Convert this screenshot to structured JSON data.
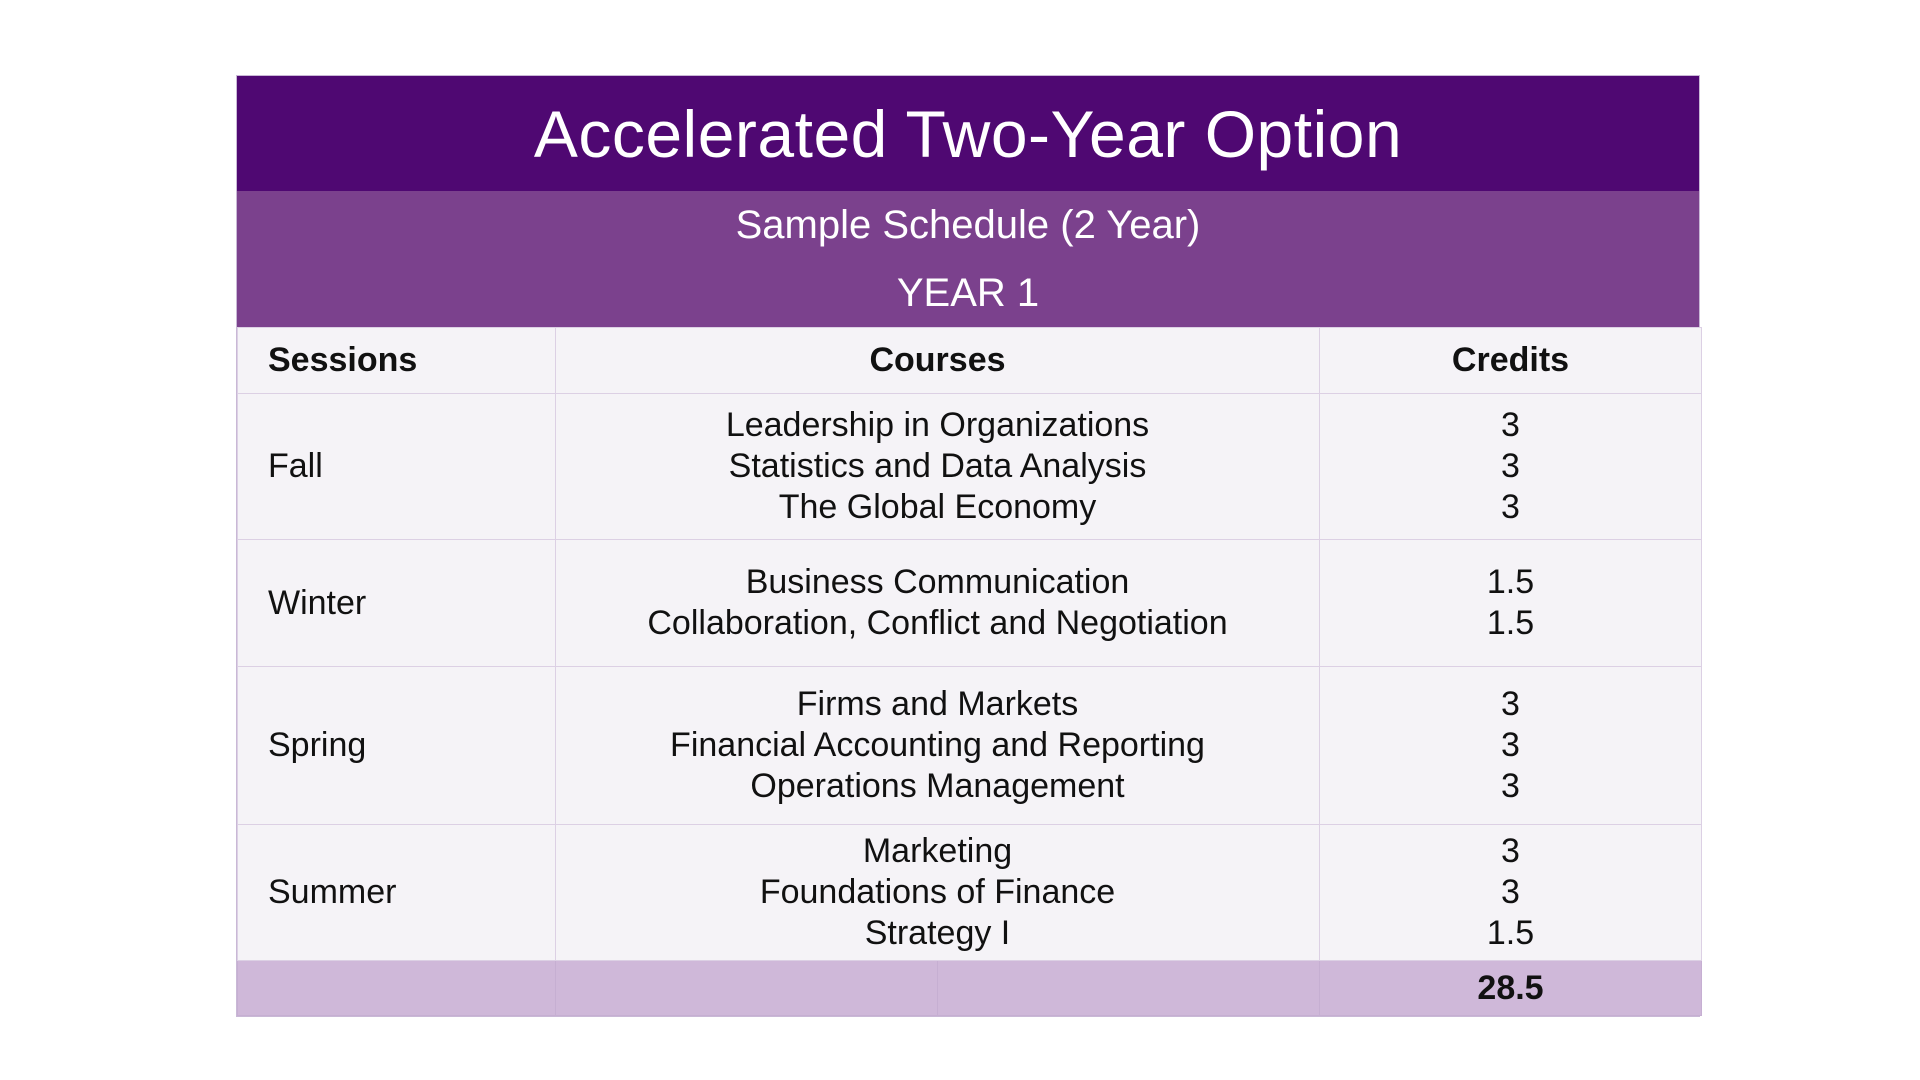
{
  "title": "Accelerated Two-Year Option",
  "subtitle": "Sample Schedule (2 Year)",
  "year_label": "YEAR 1",
  "headers": {
    "sessions": "Sessions",
    "courses": "Courses",
    "credits": "Credits"
  },
  "rows": [
    {
      "session": "Fall",
      "courses": [
        "Leadership in Organizations",
        "Statistics and Data Analysis",
        "The Global Economy"
      ],
      "credits": [
        "3",
        "3",
        "3"
      ]
    },
    {
      "session": "Winter",
      "courses": [
        "Business Communication",
        "Collaboration, Conflict and Negotiation"
      ],
      "credits": [
        "1.5",
        "1.5"
      ]
    },
    {
      "session": "Spring",
      "courses": [
        "Firms and Markets",
        "Financial Accounting and Reporting",
        "Operations Management"
      ],
      "credits": [
        "3",
        "3",
        "3"
      ]
    },
    {
      "session": "Summer",
      "courses": [
        "Marketing",
        "Foundations of Finance",
        "Strategy I"
      ],
      "credits": [
        "3",
        "3",
        "1.5"
      ]
    }
  ],
  "total_credits": "28.5",
  "colors": {
    "title_bg": "#4f0872",
    "subtitle_bg": "#7b418d",
    "total_bg": "#cfb8d9"
  }
}
